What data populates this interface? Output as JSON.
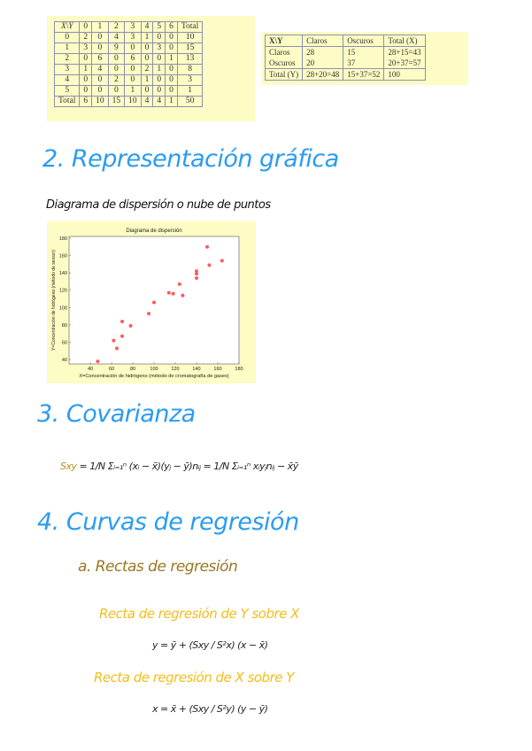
{
  "table1": {
    "header": [
      "X\\Y",
      "0",
      "1",
      "2",
      "3",
      "4",
      "5",
      "6",
      "Total"
    ],
    "rows": [
      [
        "0",
        "2",
        "0",
        "4",
        "3",
        "1",
        "0",
        "0",
        "10"
      ],
      [
        "1",
        "3",
        "0",
        "9",
        "0",
        "0",
        "3",
        "0",
        "15"
      ],
      [
        "2",
        "0",
        "6",
        "0",
        "6",
        "0",
        "0",
        "1",
        "13"
      ],
      [
        "3",
        "1",
        "4",
        "0",
        "0",
        "2",
        "1",
        "0",
        "8"
      ],
      [
        "4",
        "0",
        "0",
        "2",
        "0",
        "1",
        "0",
        "0",
        "3"
      ],
      [
        "5",
        "0",
        "0",
        "0",
        "1",
        "0",
        "0",
        "0",
        "1"
      ],
      [
        "Total",
        "6",
        "10",
        "15",
        "10",
        "4",
        "4",
        "1",
        "50"
      ]
    ]
  },
  "table2": {
    "header": [
      "X\\Y",
      "Claros",
      "Oscuros",
      "Total (X)"
    ],
    "rows": [
      [
        "Claros",
        "28",
        "15",
        "28+15=43"
      ],
      [
        "Oscuros",
        "20",
        "37",
        "20+37=57"
      ],
      [
        "Total (Y)",
        "28+20=48",
        "15+37=52",
        "100"
      ]
    ]
  },
  "section2": {
    "title": "2. Representación gráfica",
    "subtitle": "Diagrama de dispersión o nube de puntos"
  },
  "chart_data": {
    "type": "scatter",
    "title": "Diagrama de dispersión",
    "xlabel": "X=Concentración de hidrógeno (método de cromatografía de gases)",
    "ylabel": "Y=Concentración de hidrógeno (método de sensor)",
    "xlim": [
      20,
      180
    ],
    "ylim": [
      35,
      182
    ],
    "xticks": [
      40,
      60,
      80,
      100,
      120,
      140,
      160,
      180
    ],
    "yticks": [
      40,
      60,
      80,
      100,
      120,
      140,
      160,
      180
    ],
    "grid": false,
    "color": "#ff5a5a",
    "points": [
      [
        47,
        38
      ],
      [
        62,
        62
      ],
      [
        65,
        53
      ],
      [
        70,
        67
      ],
      [
        70,
        84
      ],
      [
        78,
        79
      ],
      [
        95,
        93
      ],
      [
        100,
        106
      ],
      [
        114,
        117
      ],
      [
        118,
        116
      ],
      [
        124,
        127
      ],
      [
        127,
        114
      ],
      [
        140,
        134
      ],
      [
        140,
        139
      ],
      [
        140,
        142
      ],
      [
        150,
        170
      ],
      [
        152,
        149
      ],
      [
        164,
        154
      ]
    ]
  },
  "section3": {
    "title": "3. Covarianza",
    "formula_lhs": "Sxy",
    "formula_rhs": "= 1/N Σᵢ₌₁ⁿ (xᵢ − x̄)(yⱼ − ȳ)nᵢⱼ = 1/N Σᵢ₌₁ⁿ xᵢyⱼnᵢⱼ − x̄ȳ"
  },
  "section4": {
    "title": "4. Curvas de regresión",
    "sub_a": "a. Rectas de regresión",
    "line_yx": "Recta de regresión de Y sobre X",
    "formula_yx": "y = ȳ + (Sxy / S²x) (x − x̄)",
    "line_xy": "Recta de regresión de X sobre Y",
    "formula_xy": "x = x̄ + (Sxy / S²y) (y − ȳ)"
  }
}
